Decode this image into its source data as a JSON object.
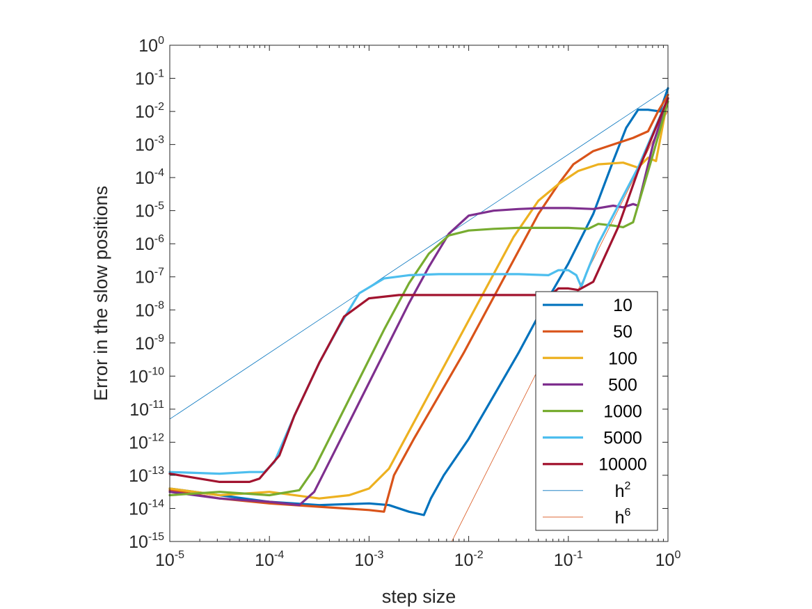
{
  "chart_data": {
    "type": "line",
    "xscale": "log",
    "yscale": "log",
    "xlim": [
      1e-05,
      1
    ],
    "ylim": [
      1e-15,
      1
    ],
    "grid": false,
    "box": true,
    "xlabel": "step size",
    "ylabel": "Error in the slow positions",
    "x_ticks": [
      {
        "base": "10",
        "exp": "-5"
      },
      {
        "base": "10",
        "exp": "-4"
      },
      {
        "base": "10",
        "exp": "-3"
      },
      {
        "base": "10",
        "exp": "-2"
      },
      {
        "base": "10",
        "exp": "-1"
      },
      {
        "base": "10",
        "exp": "0"
      }
    ],
    "y_ticks": [
      {
        "base": "10",
        "exp": "0"
      },
      {
        "base": "10",
        "exp": "-1"
      },
      {
        "base": "10",
        "exp": "-2"
      },
      {
        "base": "10",
        "exp": "-3"
      },
      {
        "base": "10",
        "exp": "-4"
      },
      {
        "base": "10",
        "exp": "-5"
      },
      {
        "base": "10",
        "exp": "-6"
      },
      {
        "base": "10",
        "exp": "-7"
      },
      {
        "base": "10",
        "exp": "-8"
      },
      {
        "base": "10",
        "exp": "-9"
      },
      {
        "base": "10",
        "exp": "-10"
      },
      {
        "base": "10",
        "exp": "-11"
      },
      {
        "base": "10",
        "exp": "-12"
      },
      {
        "base": "10",
        "exp": "-13"
      },
      {
        "base": "10",
        "exp": "-14"
      },
      {
        "base": "10",
        "exp": "-15"
      }
    ],
    "legend_location": "bottom-right",
    "series": [
      {
        "name": "10",
        "color": "#0072BD",
        "width": "thick",
        "points": [
          [
            -5,
            -13.4
          ],
          [
            -4.5,
            -13.6
          ],
          [
            -4,
            -13.8
          ],
          [
            -3.5,
            -13.9
          ],
          [
            -3,
            -13.85
          ],
          [
            -2.8,
            -13.9
          ],
          [
            -2.6,
            -14.1
          ],
          [
            -2.45,
            -14.2
          ],
          [
            -2.38,
            -13.7
          ],
          [
            -2.25,
            -13.0
          ],
          [
            -2.0,
            -11.9
          ],
          [
            -1.75,
            -10.6
          ],
          [
            -1.5,
            -9.3
          ],
          [
            -1.25,
            -7.9
          ],
          [
            -1.0,
            -6.6
          ],
          [
            -0.75,
            -5.1
          ],
          [
            -0.55,
            -3.5
          ],
          [
            -0.42,
            -2.5
          ],
          [
            -0.3,
            -1.95
          ],
          [
            -0.2,
            -1.95
          ],
          [
            -0.08,
            -2.0
          ],
          [
            0,
            -1.3
          ]
        ]
      },
      {
        "name": "50",
        "color": "#D95319",
        "width": "thick",
        "points": [
          [
            -5,
            -13.45
          ],
          [
            -4.5,
            -13.7
          ],
          [
            -4,
            -13.85
          ],
          [
            -3.5,
            -13.95
          ],
          [
            -3,
            -14.05
          ],
          [
            -2.85,
            -14.1
          ],
          [
            -2.75,
            -13.0
          ],
          [
            -2.55,
            -11.9
          ],
          [
            -2.3,
            -10.6
          ],
          [
            -2.05,
            -9.3
          ],
          [
            -1.8,
            -7.9
          ],
          [
            -1.55,
            -6.5
          ],
          [
            -1.3,
            -5.1
          ],
          [
            -1.1,
            -4.2
          ],
          [
            -0.95,
            -3.6
          ],
          [
            -0.75,
            -3.2
          ],
          [
            -0.55,
            -3.0
          ],
          [
            -0.35,
            -2.8
          ],
          [
            -0.2,
            -2.6
          ],
          [
            -0.1,
            -2.0
          ],
          [
            0,
            -1.5
          ]
        ]
      },
      {
        "name": "100",
        "color": "#EDB120",
        "width": "thick",
        "points": [
          [
            -5,
            -13.4
          ],
          [
            -4.5,
            -13.6
          ],
          [
            -4,
            -13.5
          ],
          [
            -3.5,
            -13.7
          ],
          [
            -3.2,
            -13.6
          ],
          [
            -3,
            -13.4
          ],
          [
            -2.8,
            -12.8
          ],
          [
            -2.55,
            -11.4
          ],
          [
            -2.3,
            -10.0
          ],
          [
            -2.05,
            -8.6
          ],
          [
            -1.8,
            -7.2
          ],
          [
            -1.55,
            -5.8
          ],
          [
            -1.3,
            -4.7
          ],
          [
            -1.1,
            -4.2
          ],
          [
            -0.9,
            -3.8
          ],
          [
            -0.7,
            -3.6
          ],
          [
            -0.45,
            -3.55
          ],
          [
            -0.3,
            -3.7
          ],
          [
            -0.2,
            -3.4
          ],
          [
            -0.12,
            -3.5
          ],
          [
            0,
            -1.6
          ]
        ]
      },
      {
        "name": "500",
        "color": "#7E2F8E",
        "width": "thick",
        "points": [
          [
            -5,
            -13.5
          ],
          [
            -4.5,
            -13.7
          ],
          [
            -4,
            -13.8
          ],
          [
            -3.7,
            -13.9
          ],
          [
            -3.55,
            -13.5
          ],
          [
            -3.35,
            -12.3
          ],
          [
            -3.1,
            -10.8
          ],
          [
            -2.85,
            -9.3
          ],
          [
            -2.6,
            -7.8
          ],
          [
            -2.4,
            -6.7
          ],
          [
            -2.2,
            -5.7
          ],
          [
            -2.0,
            -5.15
          ],
          [
            -1.75,
            -5.0
          ],
          [
            -1.5,
            -4.95
          ],
          [
            -1.25,
            -4.92
          ],
          [
            -1.0,
            -4.92
          ],
          [
            -0.75,
            -4.95
          ],
          [
            -0.55,
            -4.85
          ],
          [
            -0.45,
            -4.9
          ],
          [
            -0.35,
            -4.8
          ],
          [
            -0.3,
            -4.85
          ],
          [
            -0.15,
            -3.0
          ],
          [
            0,
            -1.6
          ]
        ]
      },
      {
        "name": "1000",
        "color": "#77AC30",
        "width": "thick",
        "points": [
          [
            -5,
            -13.6
          ],
          [
            -4.5,
            -13.5
          ],
          [
            -4,
            -13.6
          ],
          [
            -3.7,
            -13.45
          ],
          [
            -3.55,
            -12.8
          ],
          [
            -3.35,
            -11.6
          ],
          [
            -3.1,
            -10.1
          ],
          [
            -2.85,
            -8.6
          ],
          [
            -2.6,
            -7.2
          ],
          [
            -2.4,
            -6.3
          ],
          [
            -2.2,
            -5.75
          ],
          [
            -2.0,
            -5.6
          ],
          [
            -1.75,
            -5.55
          ],
          [
            -1.5,
            -5.52
          ],
          [
            -1.25,
            -5.52
          ],
          [
            -1.0,
            -5.52
          ],
          [
            -0.8,
            -5.55
          ],
          [
            -0.7,
            -5.4
          ],
          [
            -0.55,
            -5.45
          ],
          [
            -0.45,
            -5.5
          ],
          [
            -0.35,
            -5.35
          ],
          [
            -0.15,
            -3.3
          ],
          [
            0,
            -1.7
          ]
        ]
      },
      {
        "name": "5000",
        "color": "#4DBEEE",
        "width": "thick",
        "points": [
          [
            -5,
            -12.9
          ],
          [
            -4.5,
            -12.95
          ],
          [
            -4.2,
            -12.9
          ],
          [
            -4.05,
            -12.9
          ],
          [
            -3.95,
            -12.6
          ],
          [
            -3.75,
            -11.2
          ],
          [
            -3.5,
            -9.6
          ],
          [
            -3.3,
            -8.5
          ],
          [
            -3.1,
            -7.5
          ],
          [
            -2.85,
            -7.05
          ],
          [
            -2.6,
            -6.95
          ],
          [
            -2.3,
            -6.92
          ],
          [
            -2.0,
            -6.92
          ],
          [
            -1.5,
            -6.92
          ],
          [
            -1.2,
            -6.95
          ],
          [
            -1.1,
            -6.8
          ],
          [
            -1.0,
            -6.8
          ],
          [
            -0.92,
            -6.95
          ],
          [
            -0.87,
            -7.3
          ],
          [
            -0.82,
            -6.9
          ],
          [
            -0.7,
            -6.0
          ],
          [
            -0.3,
            -3.7
          ],
          [
            0,
            -1.6
          ]
        ]
      },
      {
        "name": "10000",
        "color": "#A2142F",
        "width": "thick",
        "points": [
          [
            -5,
            -12.95
          ],
          [
            -4.5,
            -13.2
          ],
          [
            -4.2,
            -13.2
          ],
          [
            -4.1,
            -13.1
          ],
          [
            -3.9,
            -12.4
          ],
          [
            -3.75,
            -11.2
          ],
          [
            -3.5,
            -9.6
          ],
          [
            -3.25,
            -8.2
          ],
          [
            -3.0,
            -7.65
          ],
          [
            -2.7,
            -7.55
          ],
          [
            -2.3,
            -7.55
          ],
          [
            -2.0,
            -7.55
          ],
          [
            -1.6,
            -7.55
          ],
          [
            -1.3,
            -7.55
          ],
          [
            -1.2,
            -7.6
          ],
          [
            -1.1,
            -7.35
          ],
          [
            -1.0,
            -7.35
          ],
          [
            -0.9,
            -7.4
          ],
          [
            -0.75,
            -7.15
          ],
          [
            -0.5,
            -5.5
          ],
          [
            -0.3,
            -3.8
          ],
          [
            0,
            -1.6
          ]
        ]
      },
      {
        "name": "h",
        "exp": "2",
        "color": "#0072BD",
        "width": "thin",
        "points": [
          [
            -5,
            -11.3
          ],
          [
            0,
            -1.3
          ]
        ]
      },
      {
        "name": "h",
        "exp": "6",
        "color": "#D95319",
        "width": "thin",
        "points": [
          [
            -2.17,
            -15.0
          ],
          [
            0,
            -1.98
          ]
        ]
      }
    ]
  }
}
